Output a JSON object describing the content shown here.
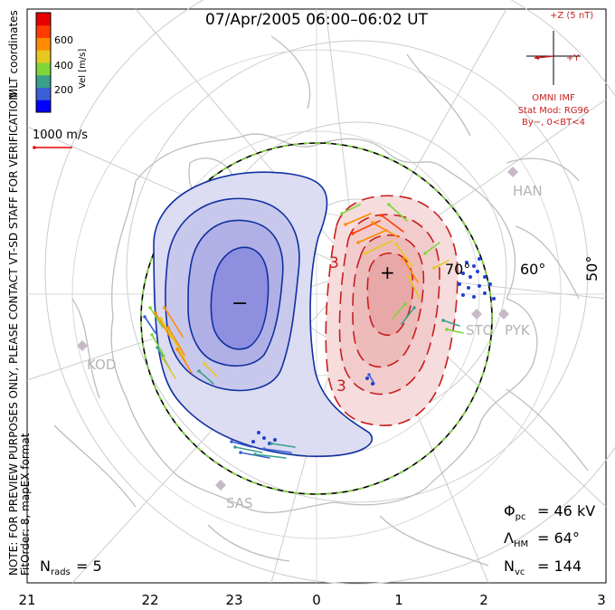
{
  "title": "07/Apr/2005 06:00–06:02 UT",
  "coords_label": "MLT coordinates",
  "colorbar": {
    "label": "Vel [m/s]",
    "ticks": [
      "600",
      "400",
      "200"
    ],
    "colors": [
      "#0000ff",
      "#3a5fd6",
      "#3aa08a",
      "#7fd63a",
      "#e6c81e",
      "#ff8c00",
      "#ff3c00",
      "#e60000"
    ]
  },
  "scale_label": "1000 m/s",
  "notes": {
    "line1": "NOTE: FOR PREVIEW PURPOSES ONLY, PLEASE CONTACT VT-SD STAFF FOR VERIFICATION.",
    "line2": "FitOrder: 8, mapEX format"
  },
  "imf": {
    "z_label": "+Z (5 nT)",
    "y_label": "+Y",
    "source": "OMNI IMF",
    "model_line1": "Stat Mod: RG96",
    "model_line2": "By−, 0<BT<4"
  },
  "latitude_labels": [
    "70°",
    "60°",
    "50°"
  ],
  "mlt_labels": [
    "21",
    "22",
    "23",
    "0",
    "1",
    "2",
    "3"
  ],
  "stations": [
    "HAN",
    "STO",
    "PYK",
    "KOD",
    "SAS"
  ],
  "contour_labels": [
    "3",
    "3"
  ],
  "markers": {
    "min": "−",
    "max": "+"
  },
  "stats": {
    "phi_pc": "46 kV",
    "lambda_hm": "64°",
    "n_vc": "144",
    "n_rads": "5"
  },
  "colors": {
    "negative_contour": "#1030a0",
    "positive_contour": "#c81e1e",
    "negative_fill": "#dcdcf2",
    "positive_fill": "#f6dcdc",
    "coast": "#bdbdbd",
    "grid": "#c8c8c8"
  }
}
